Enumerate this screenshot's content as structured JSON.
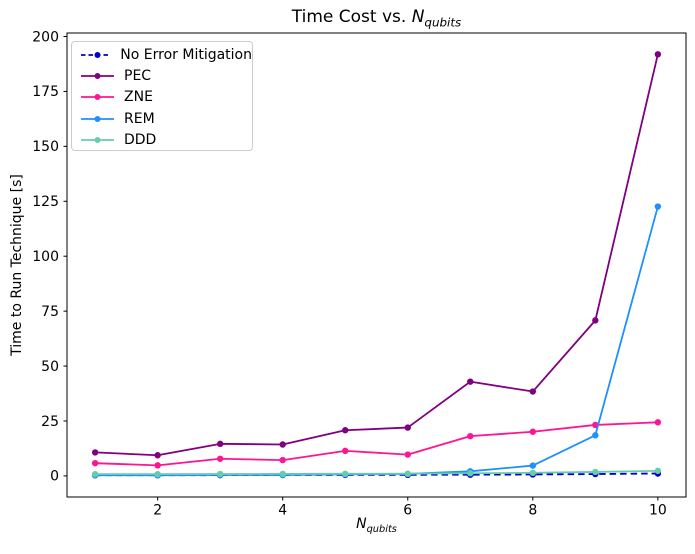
{
  "chart_data": {
    "type": "line",
    "title": "Time Cost vs. N_qubits",
    "title_parts": {
      "prefix": "Time Cost vs. ",
      "var": "N",
      "sub": "qubits"
    },
    "xlabel": "N_qubits",
    "xlabel_parts": {
      "var": "N",
      "sub": "qubits"
    },
    "ylabel": "Time to Run Technique [s]",
    "x": [
      1,
      2,
      3,
      4,
      5,
      6,
      7,
      8,
      9,
      10
    ],
    "xticks": [
      2,
      4,
      6,
      8,
      10
    ],
    "yticks": [
      0,
      25,
      50,
      75,
      100,
      125,
      150,
      175,
      200
    ],
    "xlim": [
      0.55,
      10.45
    ],
    "ylim": [
      -9.6,
      201.6
    ],
    "grid": false,
    "legend_position": "upper left",
    "axis_color": "#000000",
    "series": [
      {
        "name": "No Error Mitigation",
        "color": "#0000CD",
        "linestyle": "dashed",
        "marker": "circle",
        "values": [
          0.3,
          0.3,
          0.35,
          0.4,
          0.45,
          0.5,
          0.55,
          0.65,
          0.85,
          1.1
        ]
      },
      {
        "name": "PEC",
        "color": "#800080",
        "linestyle": "solid",
        "marker": "circle",
        "values": [
          10.7,
          9.4,
          14.6,
          14.3,
          20.8,
          22.0,
          42.9,
          38.4,
          70.8,
          191.9
        ]
      },
      {
        "name": "ZNE",
        "color": "#FF1493",
        "linestyle": "solid",
        "marker": "circle",
        "values": [
          5.8,
          4.8,
          7.8,
          7.2,
          11.4,
          9.7,
          18.1,
          20.1,
          23.2,
          24.4
        ]
      },
      {
        "name": "REM",
        "color": "#1E90FF",
        "linestyle": "solid",
        "marker": "circle",
        "values": [
          0.3,
          0.3,
          0.4,
          0.45,
          0.7,
          0.9,
          2.1,
          4.7,
          18.5,
          122.6
        ]
      },
      {
        "name": "DDD",
        "color": "#66CDAA",
        "linestyle": "solid",
        "marker": "circle",
        "values": [
          0.8,
          0.8,
          0.85,
          0.9,
          0.95,
          1.0,
          1.2,
          1.4,
          1.8,
          2.3
        ]
      }
    ]
  }
}
